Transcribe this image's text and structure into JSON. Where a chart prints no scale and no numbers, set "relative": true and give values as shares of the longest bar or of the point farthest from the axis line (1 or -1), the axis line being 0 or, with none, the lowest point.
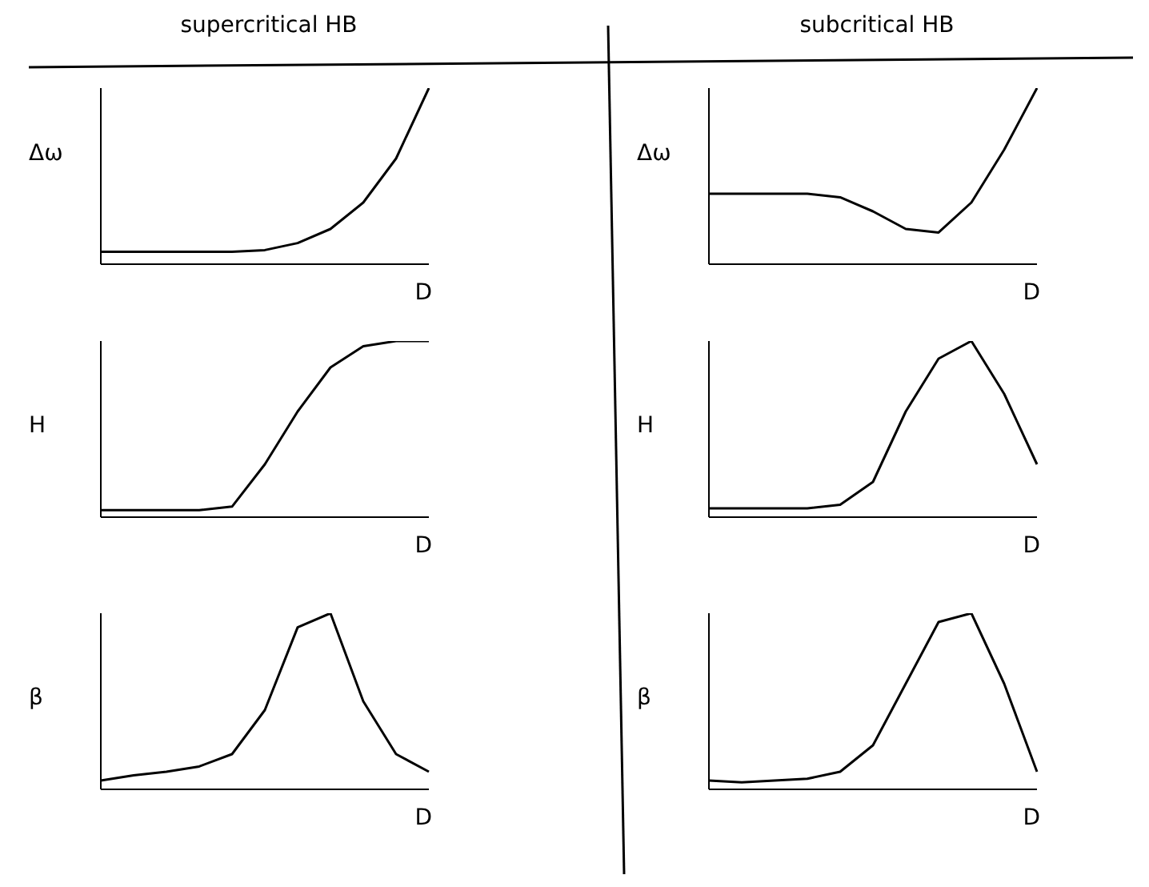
{
  "chart_data": [
    {
      "type": "line",
      "title": "supercritical HB",
      "ylabel": "Δω",
      "xlabel": "D",
      "relative": true,
      "color": "#000000",
      "categories": [
        null,
        null,
        null,
        null,
        null,
        null,
        null,
        null,
        null,
        null,
        null
      ],
      "values": [
        0.07,
        0.07,
        0.07,
        0.07,
        0.07,
        0.08,
        0.12,
        0.2,
        0.35,
        0.6,
        1
      ]
    },
    {
      "type": "line",
      "ylabel": "H",
      "xlabel": "D",
      "relative": true,
      "color": "#000000",
      "categories": [
        null,
        null,
        null,
        null,
        null,
        null,
        null,
        null,
        null,
        null,
        null
      ],
      "values": [
        0.04,
        0.04,
        0.04,
        0.04,
        0.06,
        0.3,
        0.6,
        0.85,
        0.97,
        1,
        1
      ]
    },
    {
      "type": "line",
      "ylabel": "β",
      "xlabel": "D",
      "relative": true,
      "color": "#000000",
      "categories": [
        null,
        null,
        null,
        null,
        null,
        null,
        null,
        null,
        null,
        null,
        null
      ],
      "values": [
        0.05,
        0.08,
        0.1,
        0.13,
        0.2,
        0.45,
        0.92,
        1,
        0.5,
        0.2,
        0.1
      ]
    },
    {
      "type": "line",
      "title": "subcritical HB",
      "ylabel": "Δω",
      "xlabel": "D",
      "relative": true,
      "color": "#000000",
      "categories": [
        null,
        null,
        null,
        null,
        null,
        null,
        null,
        null,
        null,
        null,
        null
      ],
      "values": [
        0.4,
        0.4,
        0.4,
        0.4,
        0.38,
        0.3,
        0.2,
        0.18,
        0.35,
        0.65,
        1
      ]
    },
    {
      "type": "line",
      "ylabel": "H",
      "xlabel": "D",
      "relative": true,
      "color": "#000000",
      "categories": [
        null,
        null,
        null,
        null,
        null,
        null,
        null,
        null,
        null,
        null,
        null
      ],
      "values": [
        0.05,
        0.05,
        0.05,
        0.05,
        0.07,
        0.2,
        0.6,
        0.9,
        1,
        0.7,
        0.3
      ]
    },
    {
      "type": "line",
      "ylabel": "β",
      "xlabel": "D",
      "relative": true,
      "color": "#000000",
      "categories": [
        null,
        null,
        null,
        null,
        null,
        null,
        null,
        null,
        null,
        null,
        null
      ],
      "values": [
        0.05,
        0.04,
        0.05,
        0.06,
        0.1,
        0.25,
        0.6,
        0.95,
        1,
        0.6,
        0.1
      ]
    }
  ]
}
